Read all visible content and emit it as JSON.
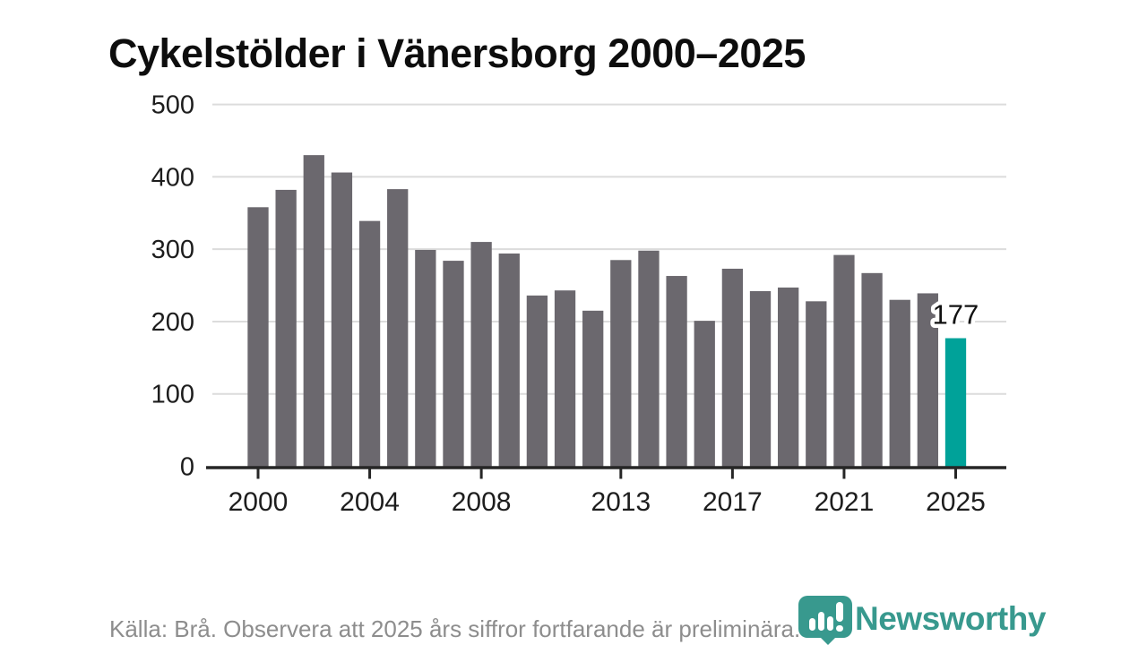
{
  "title": "Cykelstölder i Vänersborg 2000–2025",
  "footer": {
    "source_note": "Källa: Brå. Observera att 2025 års siffror fortfarande är preliminära."
  },
  "logo": {
    "wordmark": "Newsworthy",
    "badge_color": "#38998e",
    "wordmark_color": "#38998e"
  },
  "annotation": {
    "value_label": "177"
  },
  "colors": {
    "bar": "#6b686e",
    "highlight": "#00a299",
    "gridline": "#dcdcdc",
    "axis": "#262626",
    "tick_label": "#1d1d1d",
    "annotation_text": "#111111"
  },
  "chart_data": {
    "type": "bar",
    "title": "Cykelstölder i Vänersborg 2000–2025",
    "xlabel": "",
    "ylabel": "",
    "ylim": [
      0,
      500
    ],
    "grid": true,
    "legend": "none",
    "categories": [
      2000,
      2001,
      2002,
      2003,
      2004,
      2005,
      2006,
      2007,
      2008,
      2009,
      2010,
      2011,
      2012,
      2013,
      2014,
      2015,
      2016,
      2017,
      2018,
      2019,
      2020,
      2021,
      2022,
      2023,
      2024,
      2025
    ],
    "values": [
      358,
      382,
      430,
      406,
      339,
      383,
      299,
      284,
      310,
      294,
      236,
      243,
      215,
      285,
      298,
      263,
      201,
      273,
      242,
      247,
      228,
      292,
      267,
      230,
      239,
      177
    ],
    "highlight_category": 2025,
    "highlight_value": 177,
    "yticks": [
      0,
      100,
      200,
      300,
      400,
      500
    ],
    "xticks": [
      2000,
      2004,
      2008,
      2013,
      2017,
      2021,
      2025
    ]
  }
}
